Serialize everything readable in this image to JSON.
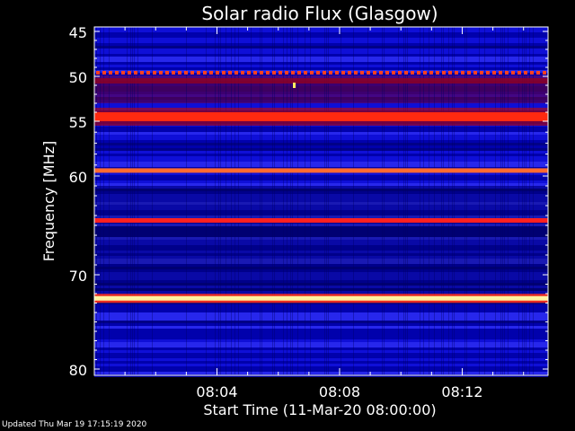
{
  "chart_data": {
    "type": "heatmap",
    "title": "Solar radio Flux (Glasgow)",
    "ylabel": "Frequency [MHz]",
    "xlabel": "Start Time (11-Mar-20 08:00:00)",
    "y_ticks": [
      "45",
      "50",
      "55",
      "60",
      "70",
      "80"
    ],
    "x_ticks": [
      "08:04",
      "08:08",
      "08:12"
    ],
    "x_tick_minutes": [
      4,
      8,
      12
    ],
    "x_range_minutes": [
      0,
      14.8
    ],
    "colormap": [
      "#0000b4",
      "#2020e0",
      "#600050",
      "#b00010",
      "#ff2010",
      "#ff7030",
      "#fff0a0"
    ],
    "bands": [
      {
        "freq_mhz": 49.6,
        "level": "red-dashed"
      },
      {
        "freq_mhz": 50.5,
        "level": "dark-red"
      },
      {
        "freq_mhz": 54.5,
        "level": "bright-red"
      },
      {
        "freq_mhz": 59.5,
        "level": "orange"
      },
      {
        "freq_mhz": 64.5,
        "level": "red"
      },
      {
        "freq_mhz": 72.5,
        "level": "yellow-white"
      }
    ]
  },
  "footer": {
    "text": "Updated Thu Mar 19 17:15:19 2020"
  }
}
